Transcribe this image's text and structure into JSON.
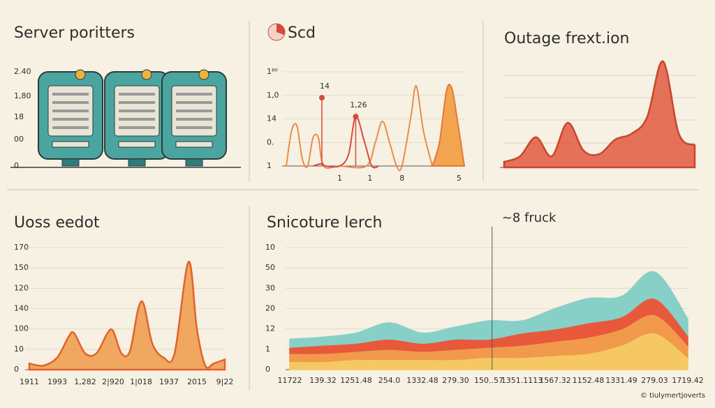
{
  "server_panel": {
    "title": "Server poritters",
    "axis_labels": [
      "2.40",
      "1,80",
      "18",
      "00",
      "0"
    ]
  },
  "footer": "© tiulymertjoverts",
  "chart_data": [
    {
      "type": "line",
      "title": "Scd",
      "xlim": [
        0,
        10
      ],
      "ylim": [
        0,
        4
      ],
      "yticks": [
        {
          "value": 0,
          "label": "1"
        },
        {
          "value": 1,
          "label": "0."
        },
        {
          "value": 2,
          "label": "14"
        },
        {
          "value": 3,
          "label": "1,0"
        },
        {
          "value": 4,
          "label": "1⁸⁰"
        }
      ],
      "xticks": [
        {
          "value": 3,
          "label": "1"
        },
        {
          "value": 4.7,
          "label": "1"
        },
        {
          "value": 6.5,
          "label": "8"
        },
        {
          "value": 9.7,
          "label": "5"
        }
      ],
      "series": [
        {
          "color": "#ec8a4a",
          "x": [
            0,
            0.3,
            0.6,
            0.9,
            1.2,
            1.5,
            1.8,
            2.1,
            3,
            4.5,
            5.0,
            5.4,
            5.8,
            6.2,
            6.5,
            7.0,
            7.3,
            7.7,
            8.2
          ],
          "values": [
            0,
            1.5,
            1.7,
            0.3,
            0,
            1.2,
            1.2,
            0,
            0,
            0,
            1.0,
            1.9,
            1.0,
            0,
            0,
            2.1,
            3.4,
            1.5,
            0
          ]
        },
        {
          "color": "#d9493a",
          "x": [
            1.5,
            2.0,
            2.2,
            3.0,
            3.5,
            3.9,
            4.4,
            4.8,
            5.2
          ],
          "values": [
            0,
            0.1,
            0,
            0,
            0.5,
            2.1,
            1,
            0,
            0
          ]
        },
        {
          "type": "area",
          "color": "#f2a44e",
          "x": [
            8.2,
            8.6,
            9.0,
            9.3,
            9.6,
            10
          ],
          "values": [
            0,
            1,
            3.2,
            3.3,
            2,
            0
          ]
        }
      ],
      "annotations": [
        {
          "text": "14",
          "x": 2.0,
          "y": 2.9
        },
        {
          "text": "1,26",
          "x": 3.9,
          "y": 2.1
        }
      ]
    },
    {
      "type": "area",
      "title": "Outage frext.ion",
      "xlim": [
        0,
        12
      ],
      "ylim": [
        0,
        10
      ],
      "color": "#e05a3f",
      "series": [
        {
          "color": "#e05a3f",
          "x": [
            0,
            1,
            2,
            3,
            4,
            5,
            6,
            7,
            8,
            9,
            10,
            11,
            12
          ],
          "values": [
            0.5,
            1,
            2.7,
            1,
            4,
            1.5,
            1.2,
            2.5,
            3,
            4.5,
            9.5,
            3,
            2
          ]
        }
      ]
    },
    {
      "type": "area",
      "title": "Uoss eedot",
      "xlim": [
        0,
        7
      ],
      "ylim": [
        0,
        6
      ],
      "yticks": [
        0,
        {
          "value": 1,
          "label": "10"
        },
        {
          "value": 2,
          "label": "100"
        },
        {
          "value": 3,
          "label": "140"
        },
        {
          "value": 4,
          "label": "120"
        },
        {
          "value": 5,
          "label": "150"
        },
        {
          "value": 6,
          "label": "170"
        }
      ],
      "xticks": [
        {
          "value": 0,
          "label": "1911"
        },
        {
          "value": 1,
          "label": "1993"
        },
        {
          "value": 2,
          "label": "1,282"
        },
        {
          "value": 3,
          "label": "2|920"
        },
        {
          "value": 4,
          "label": "1|018"
        },
        {
          "value": 5,
          "label": "1937"
        },
        {
          "value": 6,
          "label": "2015"
        },
        {
          "value": 7,
          "label": "9|22"
        }
      ],
      "series": [
        {
          "color": "#ee9a48",
          "x": [
            0,
            0.5,
            1,
            1.4,
            1.6,
            2,
            2.4,
            2.8,
            3,
            3.3,
            3.6,
            3.9,
            4.1,
            4.4,
            4.8,
            5.2,
            5.7,
            6.0,
            6.3,
            6.6,
            7
          ],
          "values": [
            0.3,
            0.2,
            0.6,
            1.6,
            1.8,
            0.8,
            0.8,
            1.8,
            1.9,
            0.8,
            0.9,
            3,
            3.2,
            1.3,
            0.6,
            0.8,
            5.3,
            2,
            0.2,
            0.3,
            0.5
          ]
        }
      ]
    },
    {
      "type": "stacked_area",
      "title": "Snicoture lerch",
      "ylim": [
        0,
        6
      ],
      "yticks": [
        0,
        1,
        {
          "value": 2,
          "label": "12"
        },
        {
          "value": 3,
          "label": "20"
        },
        {
          "value": 4,
          "label": "30"
        },
        {
          "value": 5,
          "label": "50"
        },
        {
          "value": 6,
          "label": "10"
        }
      ],
      "categories": [
        "11722",
        "139.32",
        "1251.48",
        "254.0",
        "1332.48",
        "279.30",
        "150..57",
        "1351.1113",
        "1567.32",
        "1152.48",
        "1331.49",
        "279.03",
        "1719.42"
      ],
      "series": [
        {
          "color": "#f6c863",
          "values": [
            0.4,
            0.4,
            0.5,
            0.5,
            0.5,
            0.5,
            0.6,
            0.6,
            0.7,
            0.8,
            1.2,
            1.8,
            0.6
          ]
        },
        {
          "color": "#f19a4b",
          "values": [
            0.4,
            0.4,
            0.4,
            0.5,
            0.4,
            0.5,
            0.5,
            0.6,
            0.7,
            0.8,
            0.8,
            0.9,
            0.6
          ]
        },
        {
          "color": "#e8583b",
          "values": [
            0.3,
            0.4,
            0.4,
            0.5,
            0.4,
            0.5,
            0.4,
            0.6,
            0.6,
            0.7,
            0.6,
            0.8,
            0.5
          ]
        },
        {
          "color": "#86d0c8",
          "values": [
            0.4,
            0.4,
            0.5,
            0.8,
            0.5,
            0.6,
            0.9,
            0.6,
            1,
            1.2,
            1,
            1.3,
            0.8
          ]
        }
      ],
      "annotations": [
        {
          "text": "~8 fruck",
          "x": 6.1
        }
      ]
    }
  ]
}
